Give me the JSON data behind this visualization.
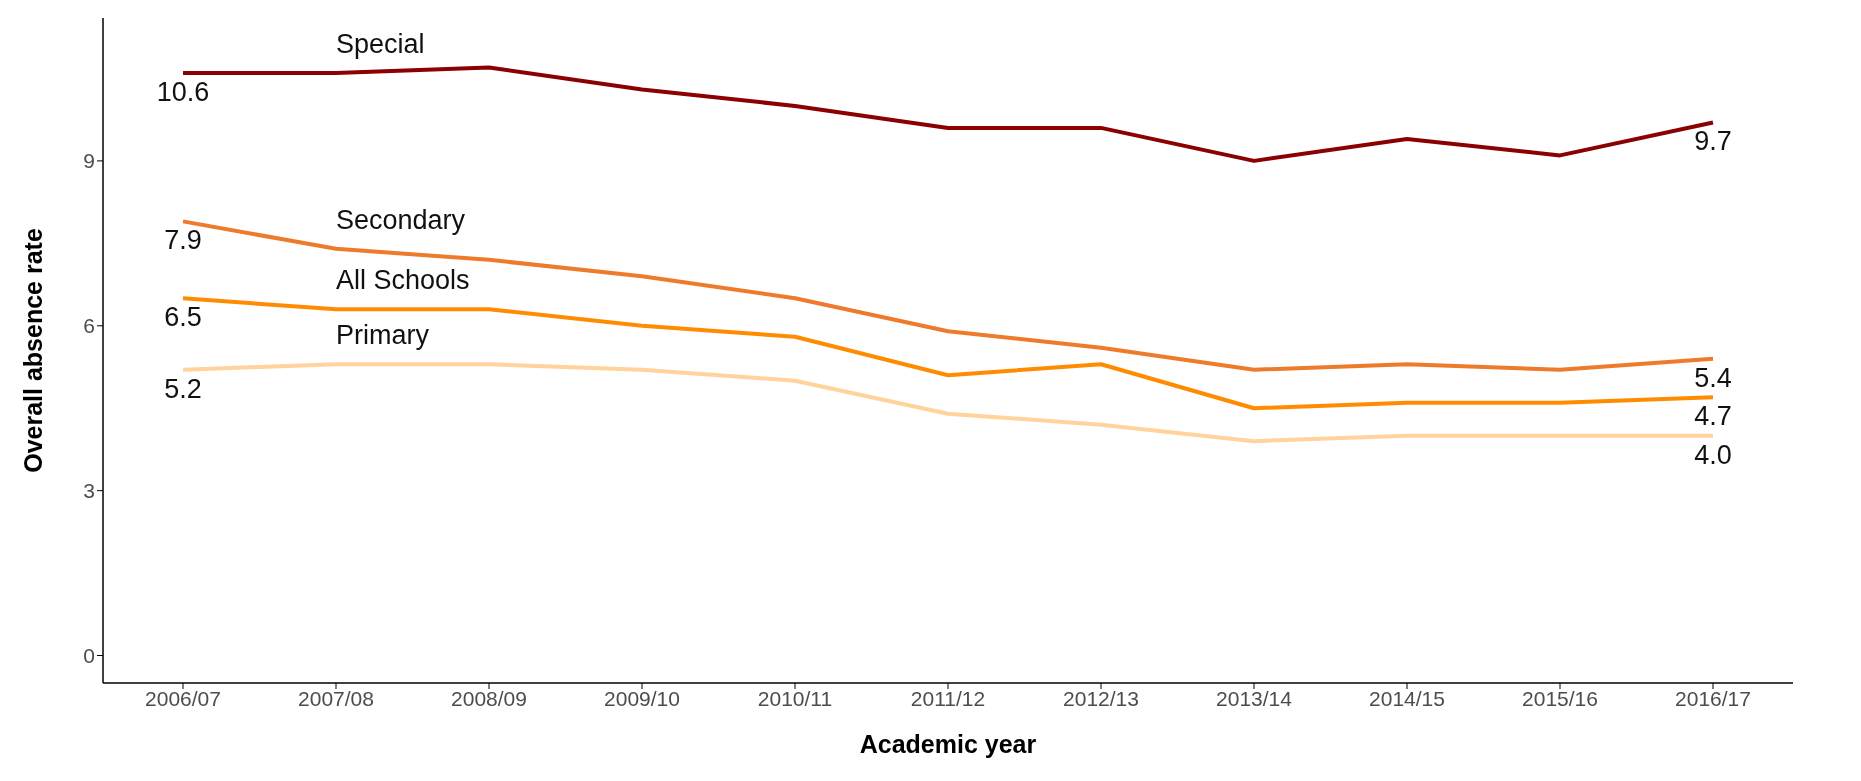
{
  "chart_data": {
    "type": "line",
    "xlabel": "Academic year",
    "ylabel": "Overall absence rate",
    "marker": "none",
    "categories": [
      "2006/07",
      "2007/08",
      "2008/09",
      "2009/10",
      "2010/11",
      "2011/12",
      "2012/13",
      "2013/14",
      "2014/15",
      "2015/16",
      "2016/17"
    ],
    "ylim": [
      -0.5,
      11.6
    ],
    "yticks": [
      0,
      3,
      6,
      9
    ],
    "series": [
      {
        "name": "Special",
        "color": "#8b0000",
        "values": [
          10.6,
          10.6,
          10.7,
          10.3,
          10.0,
          9.6,
          9.6,
          9.0,
          9.4,
          9.1,
          9.7
        ],
        "value_labels": [
          "10.6",
          null,
          null,
          null,
          null,
          null,
          null,
          null,
          null,
          null,
          "9.7"
        ]
      },
      {
        "name": "Secondary",
        "color": "#ee7b2c",
        "values": [
          7.9,
          7.4,
          7.2,
          6.9,
          6.5,
          5.9,
          5.6,
          5.2,
          5.3,
          5.2,
          5.4
        ],
        "value_labels": [
          "7.9",
          null,
          null,
          null,
          null,
          null,
          null,
          null,
          null,
          null,
          "5.4"
        ]
      },
      {
        "name": "All Schools",
        "color": "#ff8c00",
        "values": [
          6.5,
          6.3,
          6.3,
          6.0,
          5.8,
          5.1,
          5.3,
          4.5,
          4.6,
          4.6,
          4.7
        ],
        "value_labels": [
          "6.5",
          null,
          null,
          null,
          null,
          null,
          null,
          null,
          null,
          null,
          "4.7"
        ]
      },
      {
        "name": "Primary",
        "color": "#ffd39b",
        "values": [
          5.2,
          5.3,
          5.3,
          5.2,
          5.0,
          4.4,
          4.2,
          3.9,
          4.0,
          4.0,
          4.0
        ],
        "value_labels": [
          "5.2",
          null,
          null,
          null,
          null,
          null,
          null,
          null,
          null,
          null,
          "4.0"
        ]
      }
    ]
  }
}
